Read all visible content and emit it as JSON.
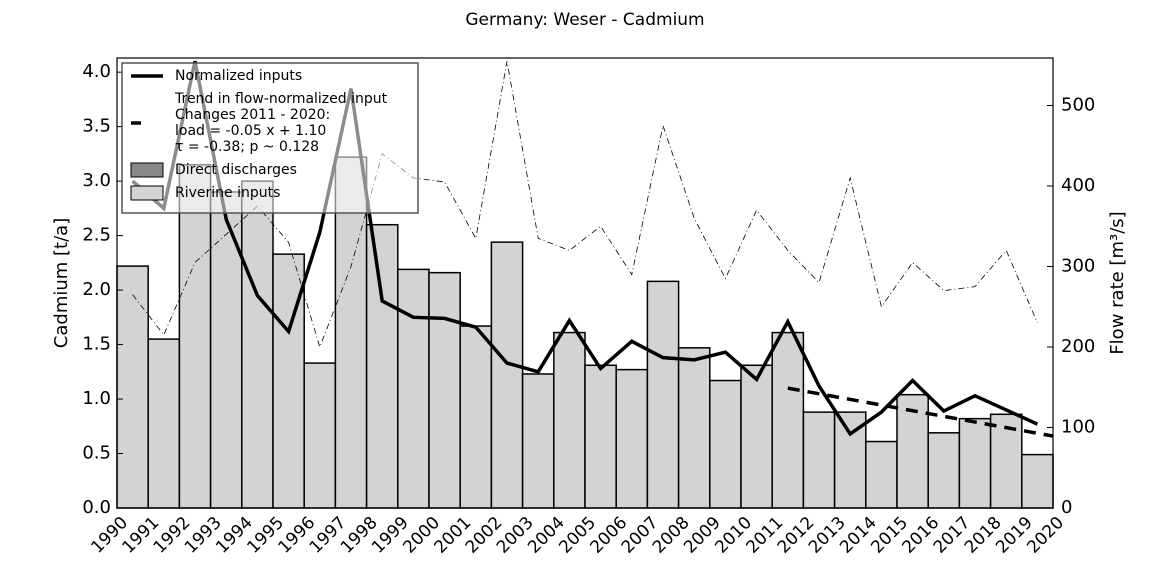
{
  "chart_data": {
    "type": "bar",
    "title": "Germany: Weser - Cadmium",
    "ylabel": "Cadmium [t/a]",
    "y2label": "Flow rate [m³/s]",
    "xlim": [
      1990,
      2020
    ],
    "xticks": [
      1990,
      1991,
      1992,
      1993,
      1994,
      1995,
      1996,
      1997,
      1998,
      1999,
      2000,
      2001,
      2002,
      2003,
      2004,
      2005,
      2006,
      2007,
      2008,
      2009,
      2010,
      2011,
      2012,
      2013,
      2014,
      2015,
      2016,
      2017,
      2018,
      2019,
      2020
    ],
    "ylim": [
      0,
      4.13
    ],
    "yticks": [
      {
        "value": 0,
        "label": "0.0"
      },
      0.5,
      {
        "value": 1,
        "label": "1.0"
      },
      1.5,
      {
        "value": 2,
        "label": "2.0"
      },
      2.5,
      {
        "value": 3,
        "label": "3.0"
      },
      3.5,
      {
        "value": 4,
        "label": "4.0"
      }
    ],
    "y2lim": [
      0,
      559
    ],
    "y2ticks": [
      0,
      100,
      200,
      300,
      400,
      500
    ],
    "legend": "upper left",
    "x": [
      1990.5,
      1991.5,
      1992.5,
      1993.5,
      1994.5,
      1995.5,
      1996.5,
      1997.5,
      1998.5,
      1999.5,
      2000.5,
      2001.5,
      2002.5,
      2003.5,
      2004.5,
      2005.5,
      2006.5,
      2007.5,
      2008.5,
      2009.5,
      2010.5,
      2011.5,
      2012.5,
      2013.5,
      2014.5,
      2015.5,
      2016.5,
      2017.5,
      2018.5,
      2019.5
    ],
    "series": [
      {
        "name": "Normalized inputs",
        "type": "line",
        "color": "#000000",
        "values": [
          3.0,
          2.75,
          4.1,
          2.65,
          1.95,
          1.62,
          2.53,
          3.85,
          1.9,
          1.75,
          1.74,
          1.66,
          1.33,
          1.25,
          1.72,
          1.28,
          1.53,
          1.38,
          1.36,
          1.43,
          1.18,
          1.71,
          1.12,
          0.68,
          0.88,
          1.17,
          0.89,
          1.03,
          0.9,
          0.77
        ]
      },
      {
        "name": "Trend in flow-normalized input",
        "type": "dashed",
        "color": "#000000",
        "annotation": [
          "Changes 2011 - 2020:",
          "load = -0.05 x +  1.10",
          "τ = -0.38; p ~ 0.128"
        ],
        "x": [
          2011.5,
          2020
        ],
        "values": [
          1.1,
          0.66
        ]
      },
      {
        "name": "Direct discharges",
        "type": "bar",
        "color": "#888888",
        "values": [
          0,
          0,
          0,
          0,
          0,
          0,
          0,
          0,
          0,
          0,
          0,
          0,
          0,
          0,
          0,
          0,
          0,
          0,
          0,
          0,
          0,
          0,
          0,
          0,
          0,
          0,
          0,
          0,
          0,
          0
        ]
      },
      {
        "name": "Riverine inputs",
        "type": "bar",
        "color": "#d3d3d3",
        "values": [
          2.22,
          1.55,
          3.15,
          2.9,
          3.0,
          2.33,
          1.33,
          3.22,
          2.6,
          2.19,
          2.16,
          1.67,
          2.44,
          1.23,
          1.61,
          1.31,
          1.27,
          2.08,
          1.47,
          1.17,
          1.31,
          1.61,
          0.88,
          0.88,
          0.61,
          1.04,
          0.69,
          0.82,
          0.86,
          0.49
        ]
      },
      {
        "type": "dashdot",
        "axis": "y2",
        "color": "#000000",
        "values": [
          265,
          215,
          305,
          340,
          375,
          330,
          200,
          300,
          440,
          410,
          405,
          335,
          555,
          335,
          320,
          350,
          290,
          475,
          360,
          285,
          370,
          320,
          280,
          410,
          250,
          305,
          270,
          275,
          320,
          230
        ]
      }
    ]
  }
}
